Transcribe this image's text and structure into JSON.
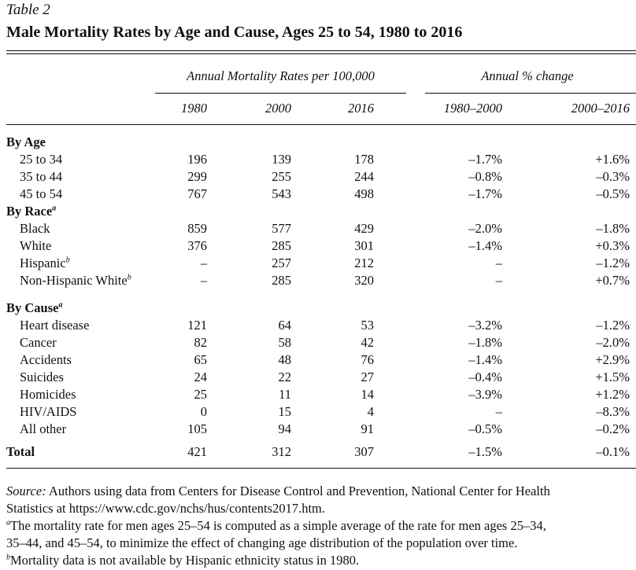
{
  "table_label": "Table 2",
  "title": "Male Mortality Rates by Age and Cause, Ages 25 to 54, 1980 to 2016",
  "header": {
    "group1": "Annual Mortality Rates per 100,000",
    "group2": "Annual % change",
    "columns": [
      "1980",
      "2000",
      "2016",
      "1980–2000",
      "2000–2016"
    ]
  },
  "sections": [
    {
      "label": "By Age",
      "sup": "",
      "rows": [
        {
          "label": "25 to 34",
          "sup": "",
          "values": [
            "196",
            "139",
            "178",
            "–1.7%",
            "+1.6%"
          ]
        },
        {
          "label": "35 to 44",
          "sup": "",
          "values": [
            "299",
            "255",
            "244",
            "–0.8%",
            "–0.3%"
          ]
        },
        {
          "label": "45 to 54",
          "sup": "",
          "values": [
            "767",
            "543",
            "498",
            "–1.7%",
            "–0.5%"
          ]
        }
      ]
    },
    {
      "label": "By Race",
      "sup": "a",
      "rows": [
        {
          "label": "Black",
          "sup": "",
          "values": [
            "859",
            "577",
            "429",
            "–2.0%",
            "–1.8%"
          ]
        },
        {
          "label": "White",
          "sup": "",
          "values": [
            "376",
            "285",
            "301",
            "–1.4%",
            "+0.3%"
          ]
        },
        {
          "label": "Hispanic",
          "sup": "b",
          "values": [
            "–",
            "257",
            "212",
            "–",
            "–1.2%"
          ]
        },
        {
          "label": "Non-Hispanic White",
          "sup": "b",
          "values": [
            "–",
            "285",
            "320",
            "–",
            "+0.7%"
          ]
        }
      ]
    },
    {
      "label": "By Cause",
      "sup": "a",
      "rows": [
        {
          "label": "Heart disease",
          "sup": "",
          "values": [
            "121",
            "64",
            "53",
            "–3.2%",
            "–1.2%"
          ]
        },
        {
          "label": "Cancer",
          "sup": "",
          "values": [
            "82",
            "58",
            "42",
            "–1.8%",
            "–2.0%"
          ]
        },
        {
          "label": "Accidents",
          "sup": "",
          "values": [
            "65",
            "48",
            "76",
            "–1.4%",
            "+2.9%"
          ]
        },
        {
          "label": "Suicides",
          "sup": "",
          "values": [
            "24",
            "22",
            "27",
            "–0.4%",
            "+1.5%"
          ]
        },
        {
          "label": "Homicides",
          "sup": "",
          "values": [
            "25",
            "11",
            "14",
            "–3.9%",
            "+1.2%"
          ]
        },
        {
          "label": "HIV/AIDS",
          "sup": "",
          "values": [
            "0",
            "15",
            "4",
            "–",
            "–8.3%"
          ]
        },
        {
          "label": "All other",
          "sup": "",
          "values": [
            "105",
            "94",
            "91",
            "–0.5%",
            "–0.2%"
          ]
        }
      ]
    }
  ],
  "total": {
    "label": "Total",
    "values": [
      "421",
      "312",
      "307",
      "–1.5%",
      "–0.1%"
    ]
  },
  "notes": {
    "source_label": "Source:",
    "source_line1": " Authors using data from Centers for Disease Control and Prevention, National Center for Health",
    "source_line2": "Statistics at https://www.cdc.gov/nchs/hus/contents2017.htm.",
    "a_mark": "a",
    "a_line1": "The mortality rate for men ages 25–54 is computed as a simple average of the rate for men ages 25–34,",
    "a_line2": "35–44, and 45–54, to minimize the effect of changing age distribution of the population over time.",
    "b_mark": "b",
    "b_line1": "Mortality data is not available by Hispanic ethnicity status in 1980."
  }
}
